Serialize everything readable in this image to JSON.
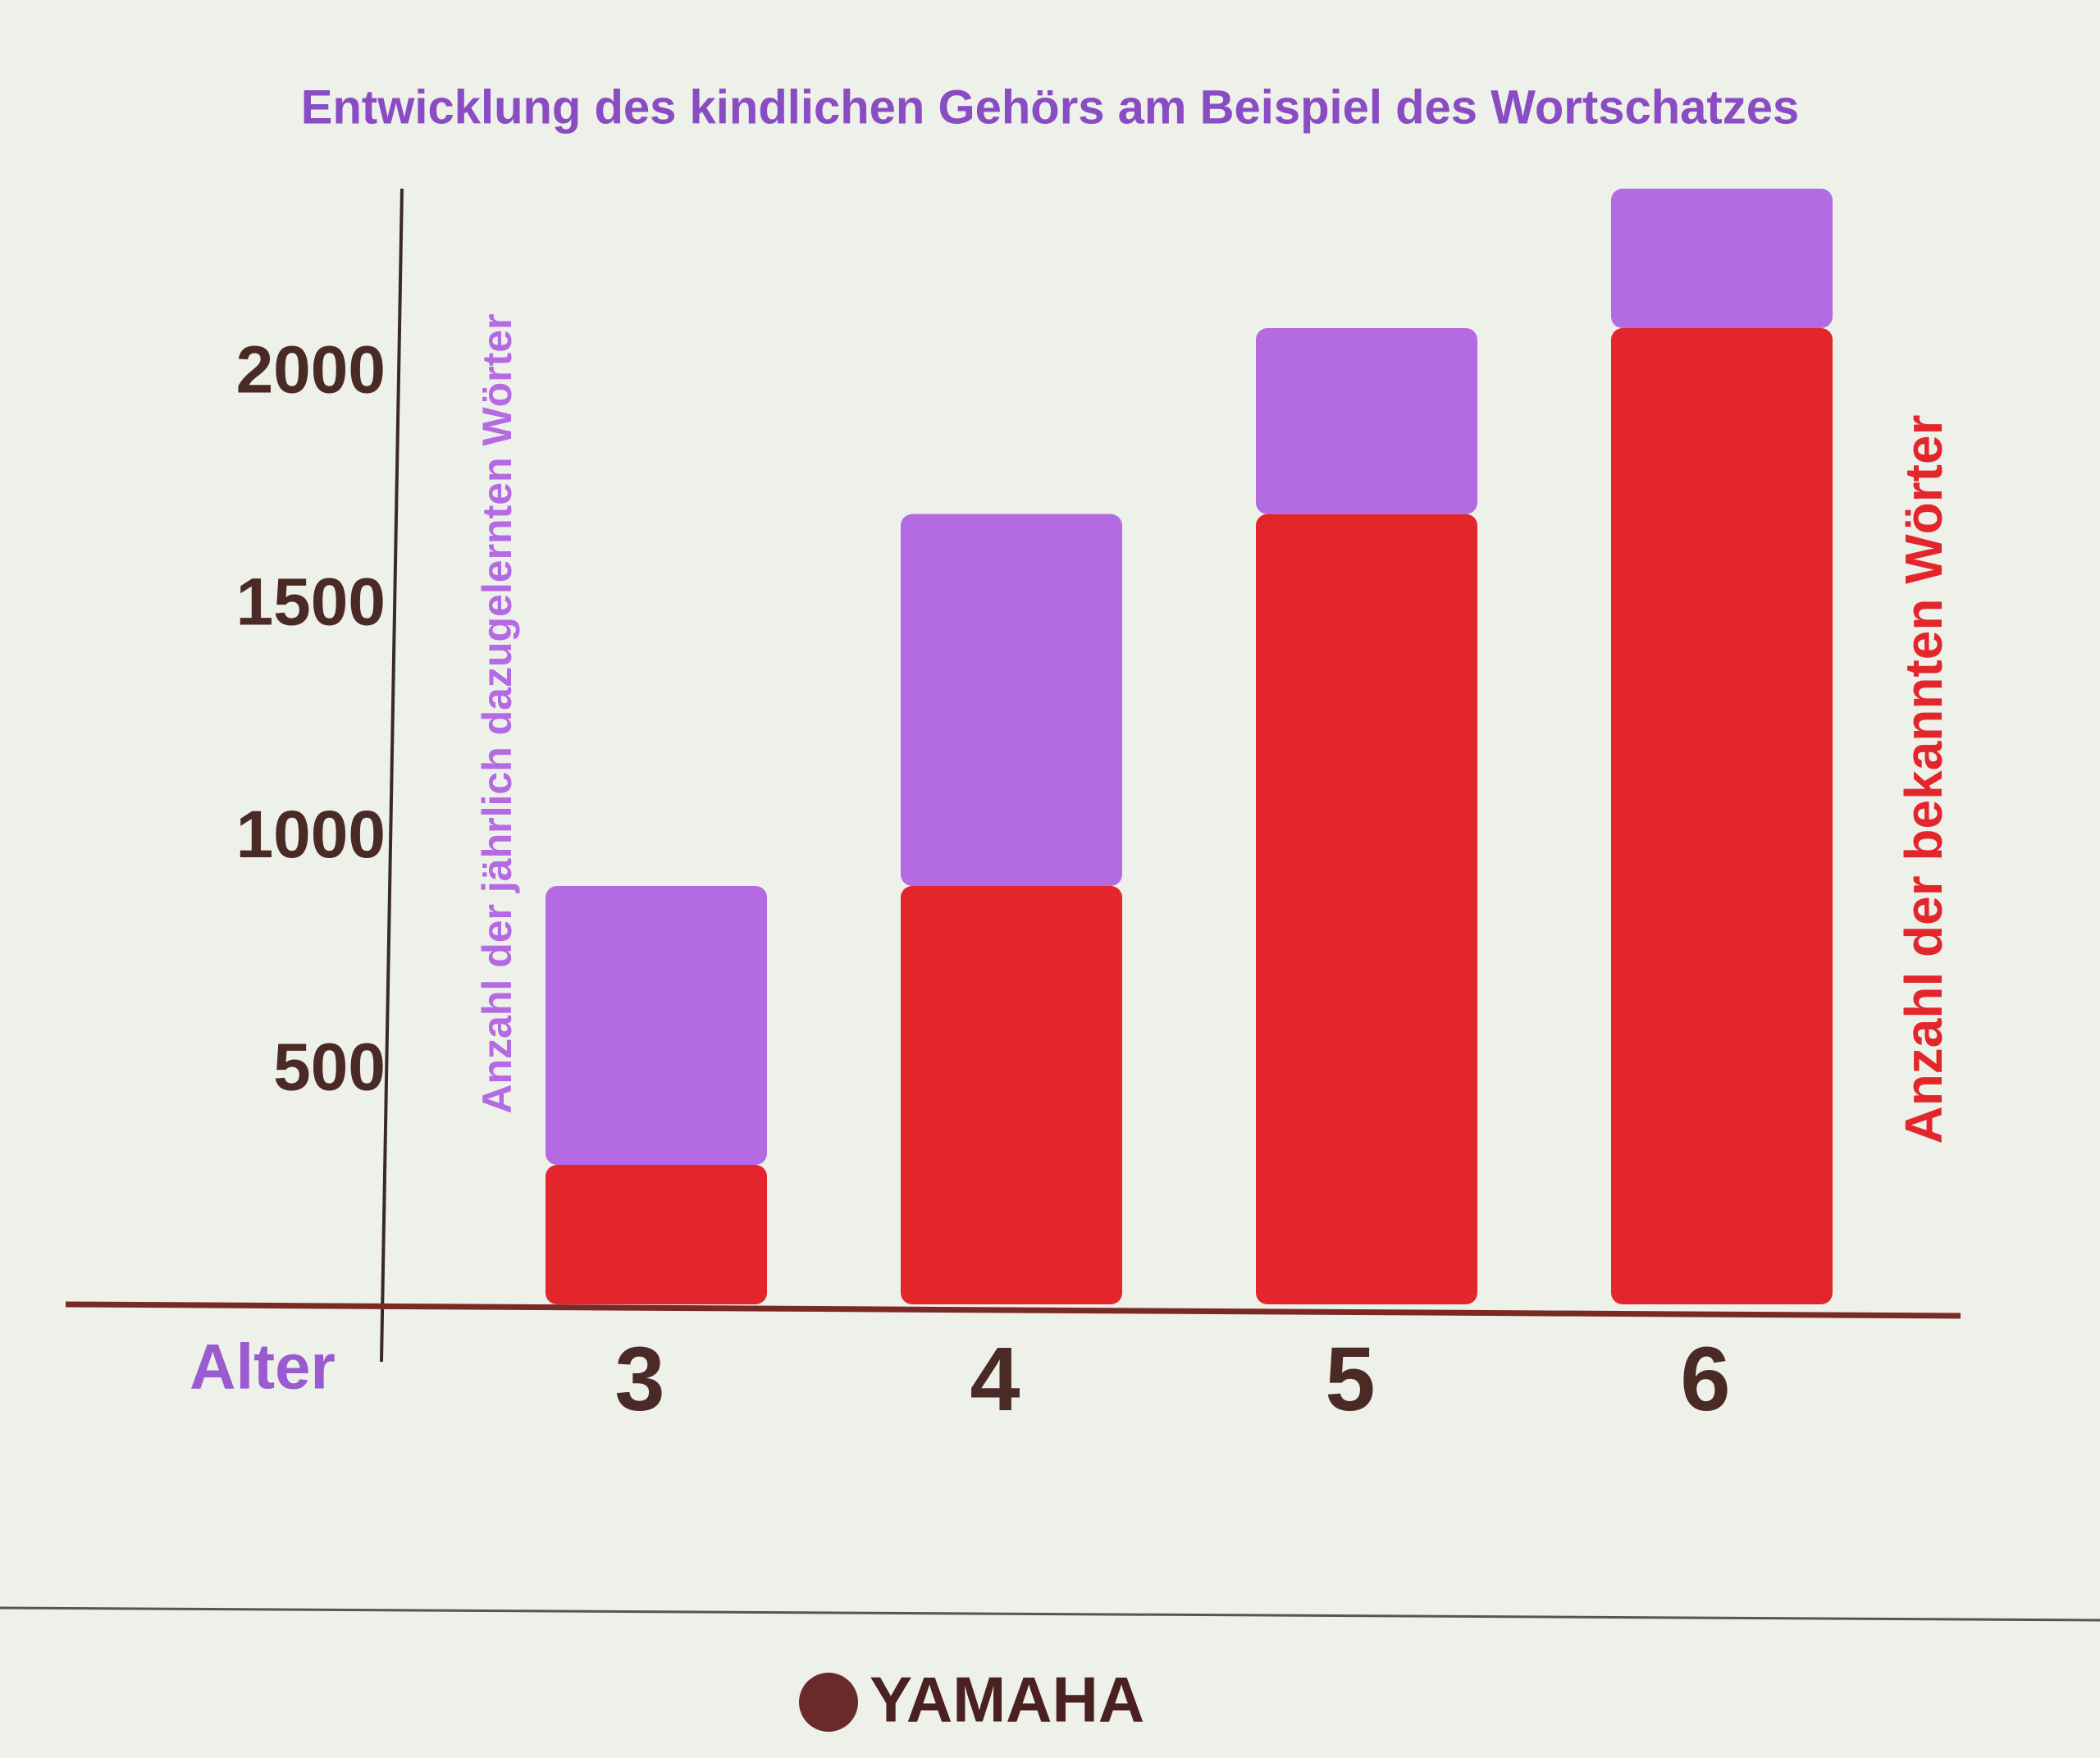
{
  "chart_data": {
    "type": "stacked_bar",
    "title": "Entwicklung des kindlichen Gehörs am Beispiel des Wortschatzes",
    "x_label": "Alter",
    "categories": [
      "3",
      "4",
      "5",
      "6"
    ],
    "series": [
      {
        "name": "Anzahl der bekannten Wörter",
        "color": "#e2262c",
        "values": [
          300,
          900,
          1700,
          2100
        ]
      },
      {
        "name": "Anzahl der jährlich dazugelernten Wörter",
        "color": "#b46ae2",
        "values": [
          600,
          800,
          400,
          300
        ]
      }
    ],
    "ylim": [
      0,
      2400
    ],
    "yticks": [
      500,
      1000,
      1500,
      2000
    ],
    "grid": false
  },
  "footer": {
    "logo": "YAMAHA"
  }
}
